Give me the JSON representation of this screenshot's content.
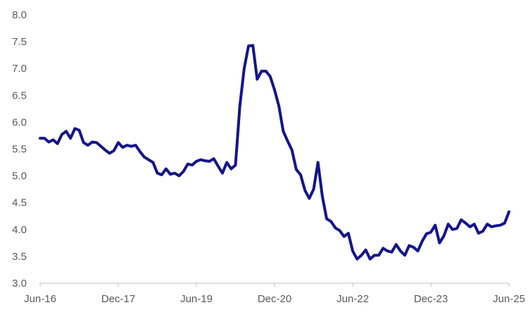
{
  "chart_data": {
    "type": "line",
    "title": "",
    "xlabel": "",
    "ylabel": "",
    "ylim": [
      3.0,
      8.0
    ],
    "y_ticks": [
      "3.0",
      "3.5",
      "4.0",
      "4.5",
      "5.0",
      "5.5",
      "6.0",
      "6.5",
      "7.0",
      "7.5",
      "8.0"
    ],
    "x_ticks": [
      "Jun-16",
      "Dec-17",
      "Jun-19",
      "Dec-20",
      "Jun-22",
      "Dec-23",
      "Jun-25"
    ],
    "grid": false,
    "legend": "none",
    "line_color": "#14148c",
    "series": [
      {
        "x": [
          "2016-06",
          "2016-07",
          "2016-08",
          "2016-09",
          "2016-10",
          "2016-11",
          "2016-12",
          "2017-01",
          "2017-02",
          "2017-03",
          "2017-04",
          "2017-05",
          "2017-06",
          "2017-07",
          "2017-08",
          "2017-09",
          "2017-10",
          "2017-11",
          "2017-12",
          "2018-01",
          "2018-02",
          "2018-03",
          "2018-04",
          "2018-05",
          "2018-06",
          "2018-07",
          "2018-08",
          "2018-09",
          "2018-10",
          "2018-11",
          "2018-12",
          "2019-01",
          "2019-02",
          "2019-03",
          "2019-04",
          "2019-05",
          "2019-06",
          "2019-07",
          "2019-08",
          "2019-09",
          "2019-10",
          "2019-11",
          "2019-12",
          "2020-01",
          "2020-02",
          "2020-03",
          "2020-04",
          "2020-05",
          "2020-06",
          "2020-07",
          "2020-08",
          "2020-09",
          "2020-10",
          "2020-11",
          "2020-12",
          "2021-01",
          "2021-02",
          "2021-03",
          "2021-04",
          "2021-05",
          "2021-06",
          "2021-07",
          "2021-08",
          "2021-09",
          "2021-10",
          "2021-11",
          "2021-12",
          "2022-01",
          "2022-02",
          "2022-03",
          "2022-04",
          "2022-05",
          "2022-06",
          "2022-07",
          "2022-08",
          "2022-09",
          "2022-10",
          "2022-11",
          "2022-12",
          "2023-01",
          "2023-02",
          "2023-03",
          "2023-04",
          "2023-05",
          "2023-06",
          "2023-07",
          "2023-08",
          "2023-09",
          "2023-10",
          "2023-11",
          "2023-12",
          "2024-01",
          "2024-02",
          "2024-03",
          "2024-04",
          "2024-05",
          "2024-06",
          "2024-07",
          "2024-08",
          "2024-09",
          "2024-10",
          "2024-11",
          "2024-12",
          "2025-01",
          "2025-02",
          "2025-03",
          "2025-04",
          "2025-05",
          "2025-06"
        ],
        "values": [
          5.7,
          5.7,
          5.63,
          5.67,
          5.6,
          5.77,
          5.83,
          5.7,
          5.88,
          5.85,
          5.62,
          5.57,
          5.63,
          5.62,
          5.55,
          5.48,
          5.42,
          5.47,
          5.62,
          5.53,
          5.57,
          5.55,
          5.57,
          5.45,
          5.35,
          5.3,
          5.25,
          5.05,
          5.02,
          5.13,
          5.03,
          5.05,
          5.0,
          5.08,
          5.22,
          5.2,
          5.27,
          5.3,
          5.28,
          5.27,
          5.32,
          5.18,
          5.05,
          5.25,
          5.13,
          5.2,
          6.3,
          7.0,
          7.42,
          7.43,
          6.8,
          6.95,
          6.95,
          6.85,
          6.6,
          6.3,
          5.83,
          5.65,
          5.48,
          5.12,
          5.02,
          4.73,
          4.58,
          4.75,
          5.25,
          4.62,
          4.2,
          4.15,
          4.03,
          3.98,
          3.87,
          3.93,
          3.6,
          3.45,
          3.52,
          3.62,
          3.45,
          3.52,
          3.52,
          3.65,
          3.6,
          3.58,
          3.72,
          3.6,
          3.52,
          3.7,
          3.67,
          3.6,
          3.78,
          3.92,
          3.95,
          4.08,
          3.75,
          3.88,
          4.1,
          4.0,
          4.02,
          4.18,
          4.12,
          4.05,
          4.1,
          3.93,
          3.97,
          4.1,
          4.05,
          4.07,
          4.08,
          4.12,
          4.33
        ]
      }
    ]
  }
}
